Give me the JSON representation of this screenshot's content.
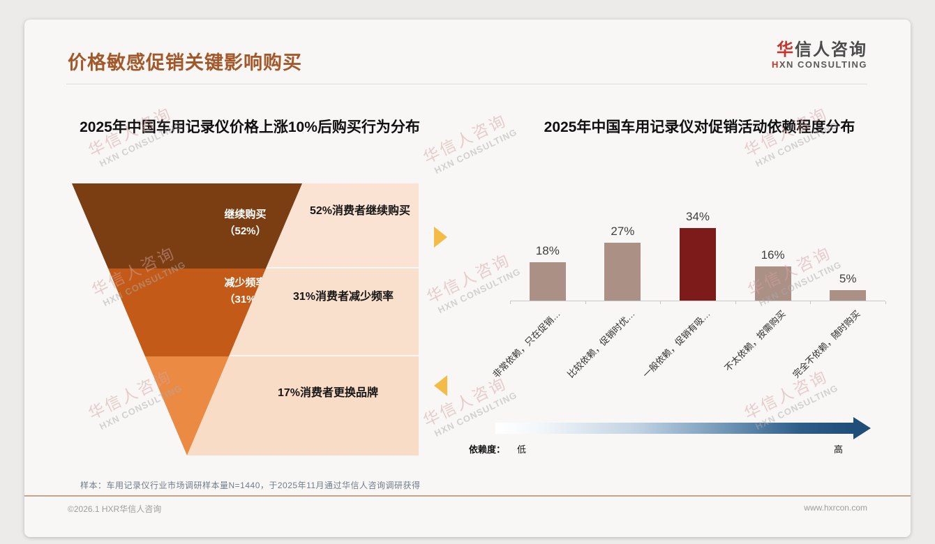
{
  "page": {
    "title": "价格敏感促销关键影响购买",
    "logo": {
      "zh_accent": "华",
      "zh": "信人咨询",
      "en_accent": "H",
      "en": "XN CONSULTING"
    },
    "watermark": {
      "zh": "华信人咨询",
      "en": "HXN CONSULTING"
    },
    "footnote": "样本：车用记录仪行业市场调研样本量N=1440，于2025年11月通过华信人咨询调研获得",
    "footer": {
      "left": "©2026.1 HXR华信人咨询",
      "right": "www.hxrcon.com"
    }
  },
  "chart_data": [
    {
      "type": "funnel",
      "title": "2025年中国车用记录仪价格上涨10%后购买行为分布",
      "categories": [
        "继续购买",
        "减少频率",
        "更换品牌"
      ],
      "values": [
        52,
        31,
        17
      ],
      "unit": "%",
      "side_labels": [
        "52%消费者继续购买",
        "31%消费者减少频率",
        "17%消费者更换品牌"
      ],
      "segment_colors": [
        "#7B3E12",
        "#C35A17",
        "#EB8A43"
      ],
      "panel_colors": [
        "#FAE3D3",
        "#F9E0CD",
        "#F8DCC6"
      ]
    },
    {
      "type": "bar",
      "title": "2025年中国车用记录仪对促销活动依赖程度分布",
      "categories": [
        "非常依赖，只在促销…",
        "比较依赖，促销时优…",
        "一般依赖，促销有吸…",
        "不太依赖，按需购买",
        "完全不依赖，随时购买"
      ],
      "values": [
        18,
        27,
        34,
        16,
        5
      ],
      "data_labels": [
        "18%",
        "27%",
        "34%",
        "16%",
        "5%"
      ],
      "highlight_index": 2,
      "bar_color": "#AB9086",
      "highlight_color": "#7D1A1A",
      "ylim": [
        0,
        40
      ],
      "grid": false,
      "legend": {
        "title": "依赖度：",
        "low": "低",
        "high": "高"
      },
      "gradient_colors": [
        "#FFFFFF",
        "#1F4E79"
      ]
    }
  ]
}
